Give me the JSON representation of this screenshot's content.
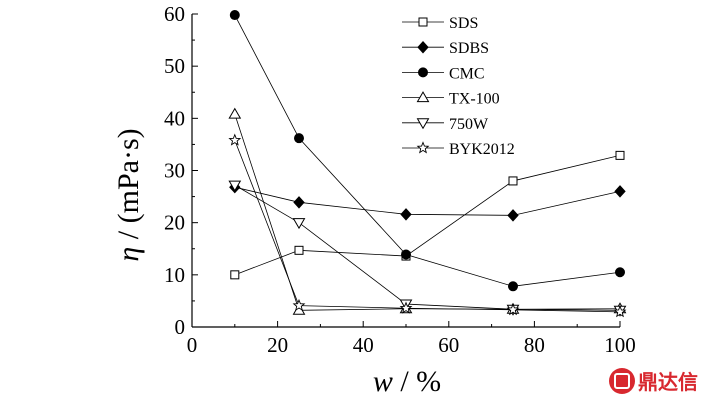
{
  "chart_data": {
    "type": "line",
    "xlabel": {
      "var": "w",
      "sep": " / ",
      "unit": "%"
    },
    "ylabel": {
      "var": "η",
      "sep": " / ",
      "unit": "(mPa·s)"
    },
    "xlim": [
      0,
      100
    ],
    "ylim": [
      0,
      60
    ],
    "xticks": [
      0,
      20,
      40,
      60,
      80,
      100
    ],
    "yticks": [
      0,
      10,
      20,
      30,
      40,
      50,
      60
    ],
    "legend_position": "top-right",
    "grid": false,
    "series": [
      {
        "name": "SDS",
        "marker": "square-open",
        "x": [
          10,
          25,
          50,
          75,
          100
        ],
        "y": [
          10.0,
          14.7,
          13.6,
          28.0,
          32.9
        ]
      },
      {
        "name": "SDBS",
        "marker": "diamond-filled",
        "x": [
          10,
          25,
          50,
          75,
          100
        ],
        "y": [
          26.8,
          23.9,
          21.6,
          21.4,
          26.0
        ]
      },
      {
        "name": "CMC",
        "marker": "circle-filled",
        "x": [
          10,
          25,
          50,
          75,
          100
        ],
        "y": [
          59.8,
          36.2,
          13.9,
          7.8,
          10.5
        ]
      },
      {
        "name": "TX-100",
        "marker": "triangle-up-open",
        "x": [
          10,
          25,
          50,
          75,
          100
        ],
        "y": [
          40.8,
          3.2,
          3.5,
          3.4,
          3.5
        ]
      },
      {
        "name": "750W",
        "marker": "triangle-down-open",
        "x": [
          10,
          25,
          50,
          75,
          100
        ],
        "y": [
          27.2,
          20.0,
          4.4,
          3.4,
          3.2
        ]
      },
      {
        "name": "BYK2012",
        "marker": "star-open",
        "x": [
          10,
          25,
          50,
          75,
          100
        ],
        "y": [
          35.8,
          4.1,
          3.6,
          3.3,
          2.9
        ]
      }
    ]
  },
  "watermark": {
    "text": "鼎达信",
    "color": "#d8282f"
  }
}
